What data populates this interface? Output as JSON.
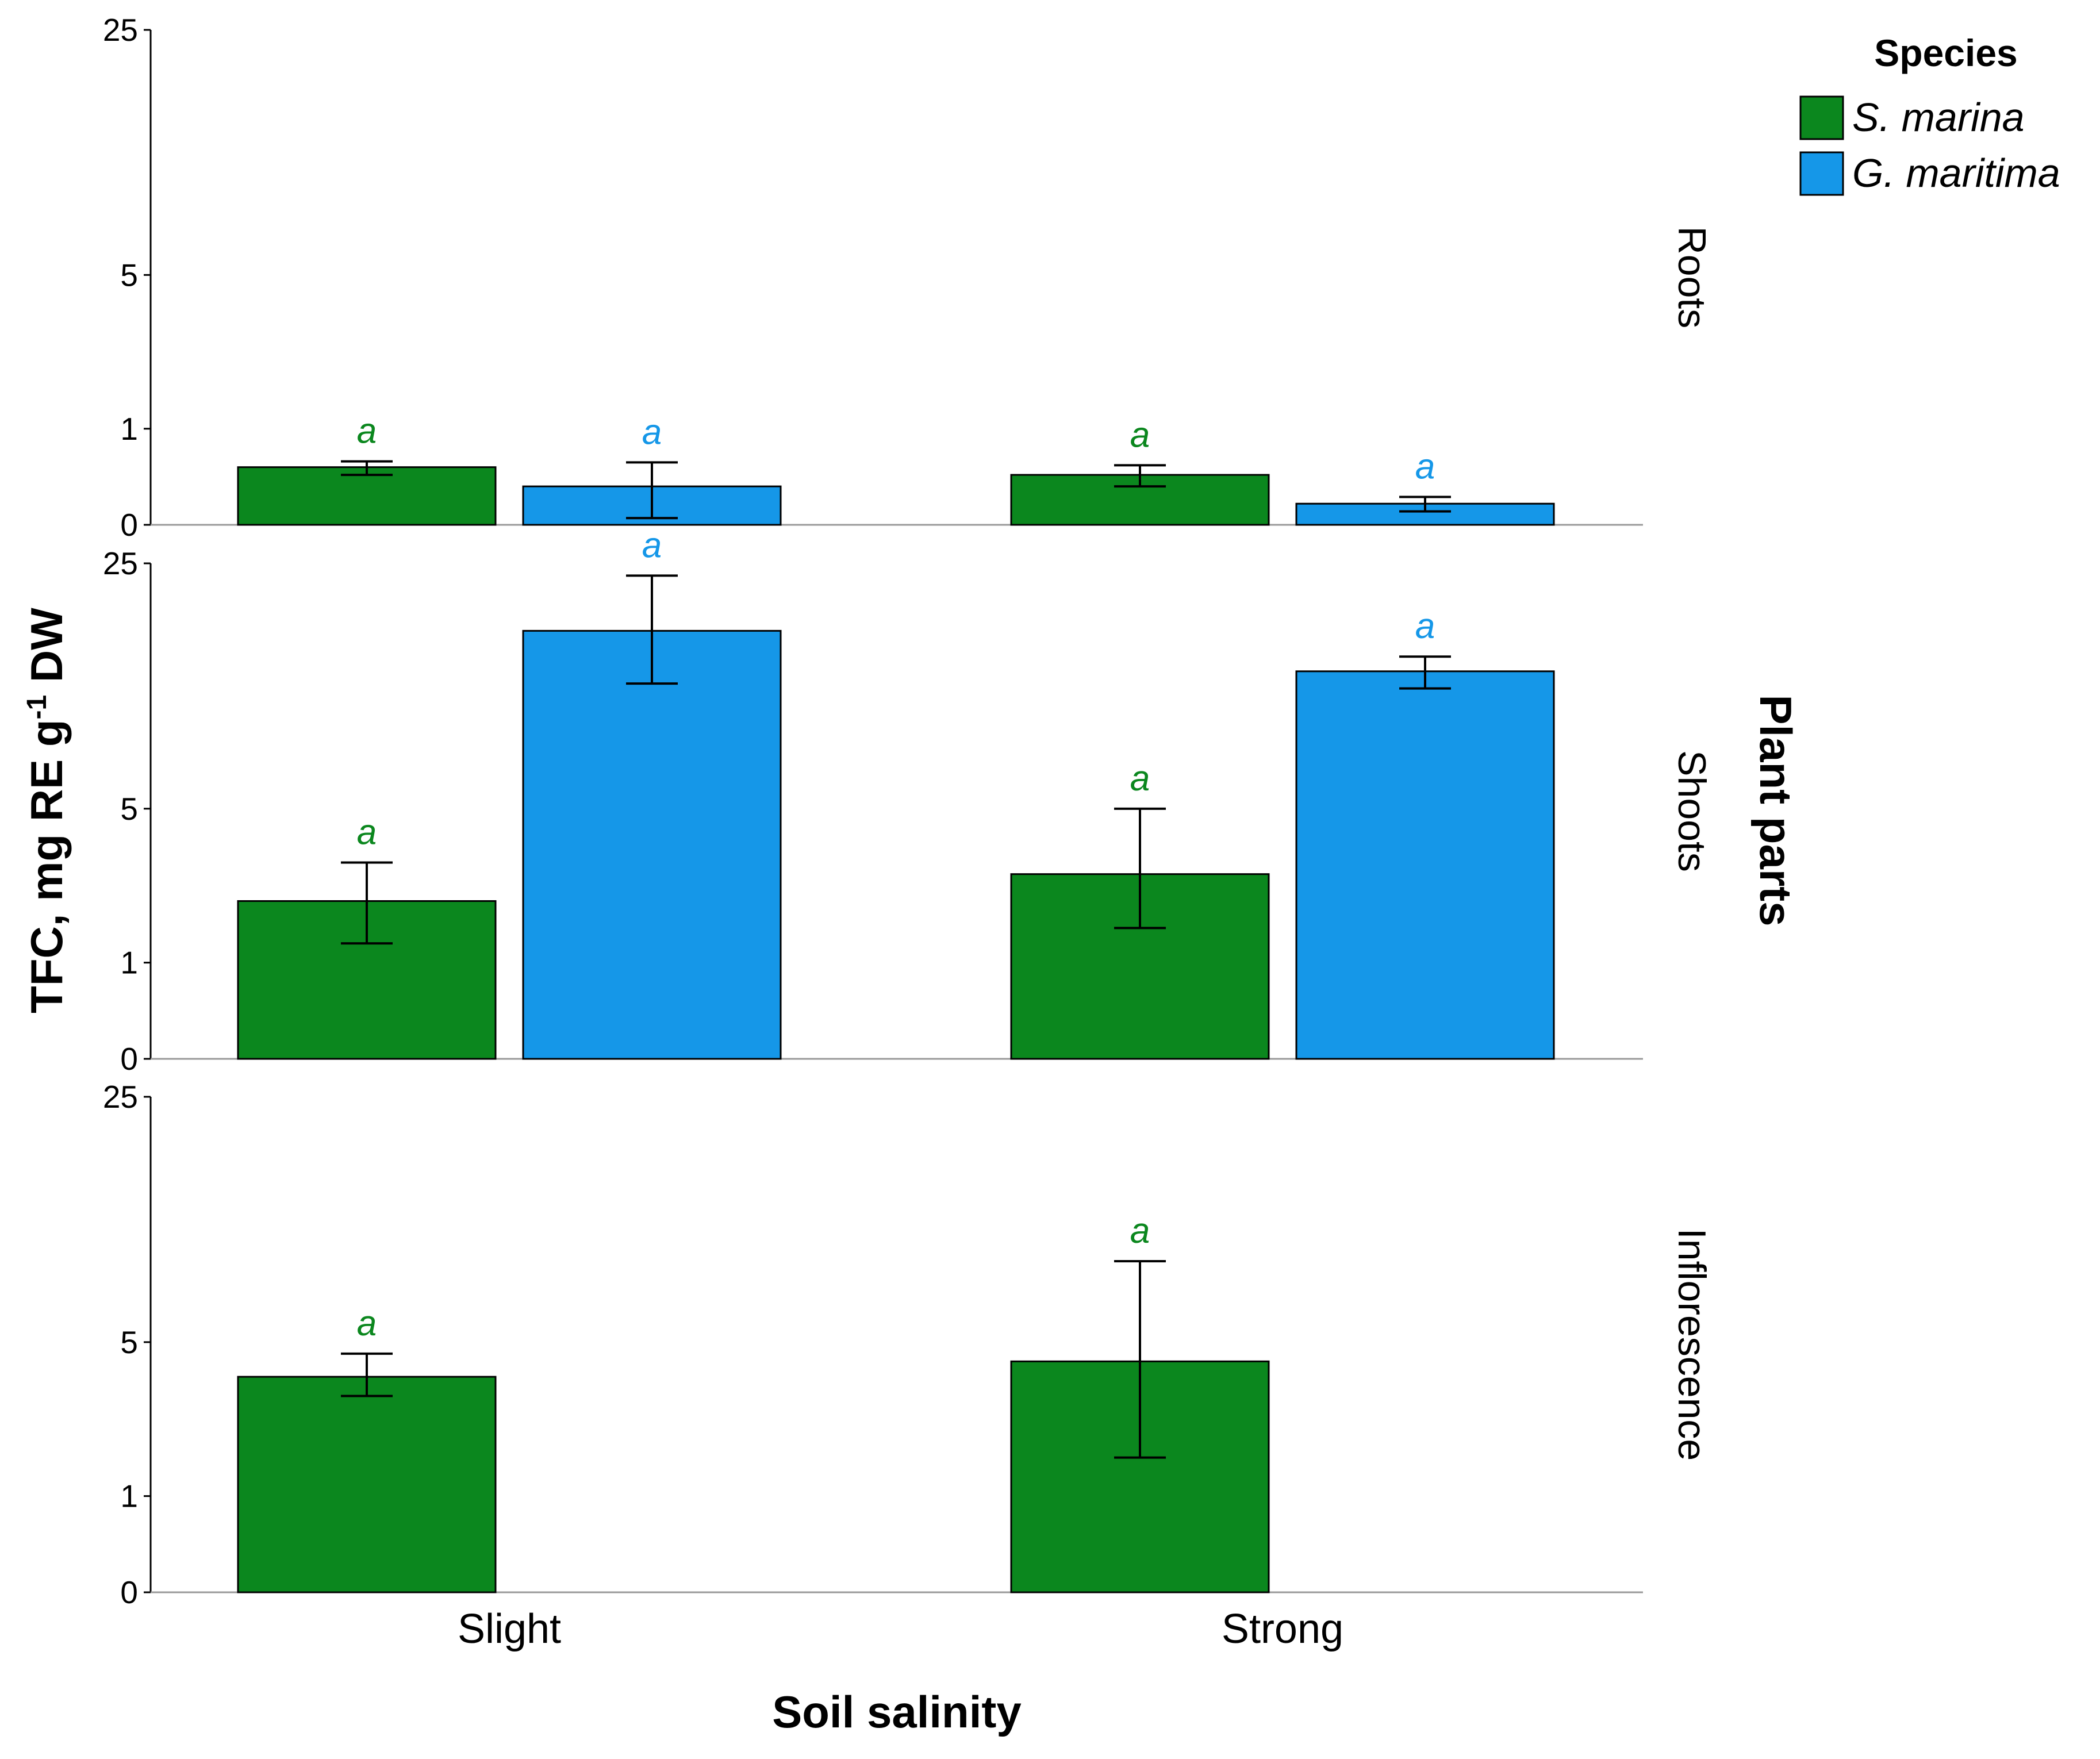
{
  "colors": {
    "S. marina": "#0b871e",
    "G. maritima": "#1597e8"
  },
  "chart_data": {
    "type": "bar",
    "xlabel": "Soil salinity",
    "ylabel_parts": [
      "TFC, mg RE g",
      "-1",
      " DW"
    ],
    "facet_title": "Plant parts",
    "legend_title": "Species",
    "legend_position": "top-right",
    "categories": [
      "Slight",
      "Strong"
    ],
    "y_ticks": [
      0,
      1,
      5,
      25
    ],
    "y_scale": "non-linear (ticks 0, 1, 5, 25 equally spaced at 0, 1, 5; 25 at top)",
    "ylim": [
      0,
      25
    ],
    "grid": false,
    "series_names": [
      "S. marina",
      "G. maritima"
    ],
    "facets": [
      {
        "name": "Roots",
        "series": [
          {
            "name": "S. marina",
            "values": [
              0.6,
              0.52
            ],
            "err_low": [
              0.52,
              0.4
            ],
            "err_high": [
              0.66,
              0.62
            ],
            "sig": [
              "a",
              "a"
            ]
          },
          {
            "name": "G. maritima",
            "values": [
              0.4,
              0.22
            ],
            "err_low": [
              0.07,
              0.14
            ],
            "err_high": [
              0.65,
              0.29
            ],
            "sig": [
              "a",
              "a"
            ]
          }
        ]
      },
      {
        "name": "Shoots",
        "series": [
          {
            "name": "S. marina",
            "values": [
              2.6,
              3.3
            ],
            "err_low": [
              1.5,
              1.9
            ],
            "err_high": [
              3.6,
              5.0
            ],
            "sig": [
              "a",
              "a"
            ]
          },
          {
            "name": "G. maritima",
            "values": [
              19.5,
              16.2
            ],
            "err_low": [
              15.2,
              14.8
            ],
            "err_high": [
              24.0,
              17.4
            ],
            "sig": [
              "a",
              "a"
            ]
          }
        ]
      },
      {
        "name": "Inflorescence",
        "series": [
          {
            "name": "S. marina",
            "values": [
              4.1,
              4.5
            ],
            "err_low": [
              3.6,
              2.0
            ],
            "err_high": [
              4.7,
              11.6
            ],
            "sig": [
              "a",
              "a"
            ]
          },
          {
            "name": "G. maritima",
            "values": [
              null,
              null
            ],
            "err_low": [
              null,
              null
            ],
            "err_high": [
              null,
              null
            ],
            "sig": [
              null,
              null
            ]
          }
        ]
      }
    ]
  }
}
